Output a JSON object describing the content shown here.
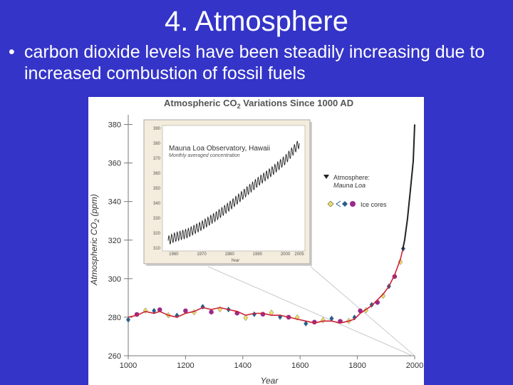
{
  "slide": {
    "title": "4. Atmosphere",
    "bullet_marker": "•",
    "bullet_text": "carbon dioxide levels have been steadily increasing due to increased combustion of fossil fuels"
  },
  "colors": {
    "background": "#3434c8",
    "text": "#ffffff",
    "ice_core_line": "#cc2233",
    "mauna_loa": "#222222",
    "diamond_blue": "#2a5c8a",
    "diamond_yellow": "#f0e060",
    "circle_purple": "#9a2a8a"
  },
  "chart_data": [
    {
      "type": "scatter",
      "title_prefix": "Atmospheric CO",
      "title_sub": "2",
      "title_suffix": " Variations Since 1000 AD",
      "xlabel": "Year",
      "ylabel_prefix": "Atmospheric CO",
      "ylabel_sub": "2",
      "ylabel_suffix": " (ppm)",
      "xlim": [
        1000,
        2000
      ],
      "ylim": [
        260,
        385
      ],
      "xticks": [
        "1000",
        "1200",
        "1400",
        "1600",
        "1800",
        "2000"
      ],
      "yticks": [
        "260",
        "280",
        "300",
        "320",
        "340",
        "360",
        "380"
      ],
      "legend": {
        "atmosphere_label": "Atmosphere:",
        "atmosphere_sub": "Mauna Loa",
        "ice_label": "Ice cores"
      },
      "series": [
        {
          "name": "Mauna Loa",
          "x": [
            1958,
            1965,
            1975,
            1985,
            1995,
            2005
          ],
          "y": [
            315,
            320,
            331,
            346,
            361,
            380
          ]
        },
        {
          "name": "Ice cores",
          "x": [
            1000,
            1030,
            1060,
            1090,
            1110,
            1140,
            1170,
            1200,
            1230,
            1260,
            1290,
            1320,
            1350,
            1380,
            1410,
            1440,
            1470,
            1500,
            1530,
            1560,
            1590,
            1620,
            1650,
            1680,
            1710,
            1740,
            1770,
            1790,
            1810,
            1830,
            1850,
            1870,
            1890,
            1910,
            1930,
            1950,
            1960
          ],
          "y": [
            280,
            281,
            283,
            282,
            283,
            281,
            280,
            282,
            283,
            285,
            284,
            285,
            284,
            283,
            281,
            282,
            282,
            281,
            281,
            280,
            279,
            278,
            277,
            278,
            278,
            277,
            278,
            279,
            282,
            284,
            286,
            289,
            292,
            296,
            302,
            310,
            316
          ]
        }
      ]
    },
    {
      "type": "line",
      "title": "Mauna Loa Observatory, Hawaii",
      "subtitle": "Monthly averaged concentration",
      "xlabel": "Year",
      "xticks": [
        "1960",
        "1970",
        "1980",
        "1990",
        "2000",
        "2005"
      ],
      "yticks": [
        "310",
        "320",
        "330",
        "340",
        "350",
        "360",
        "370",
        "380",
        "390"
      ],
      "xlim": [
        1958,
        2006
      ],
      "ylim": [
        310,
        390
      ],
      "series": [
        {
          "name": "Mauna Loa",
          "x": [
            1958,
            1960,
            1965,
            1970,
            1975,
            1980,
            1985,
            1990,
            1995,
            2000,
            2005
          ],
          "y": [
            315,
            317,
            320,
            325,
            331,
            338,
            346,
            354,
            361,
            369,
            380
          ]
        }
      ]
    }
  ]
}
